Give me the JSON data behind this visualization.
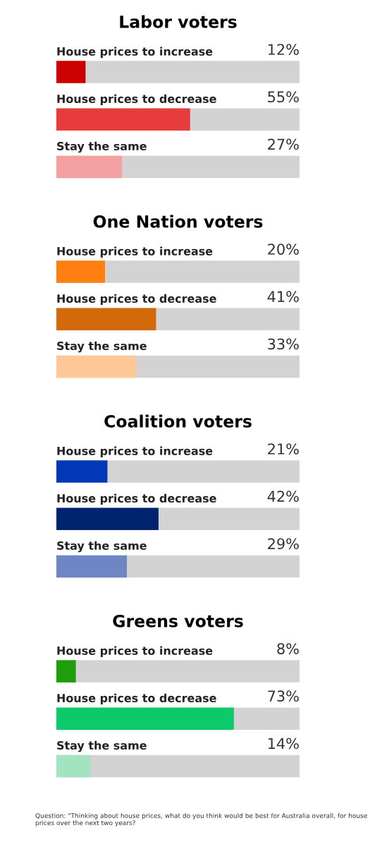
{
  "chart_data": [
    {
      "type": "bar",
      "orientation": "horizontal",
      "title": "Labor voters",
      "categories": [
        "House prices to increase",
        "House prices to decrease",
        "Stay the same"
      ],
      "tick_labels": false,
      "bands": [
        {
          "axis": "x",
          "from": 0,
          "to": 100,
          "color": "#d3d3d3"
        }
      ],
      "series": [
        {
          "colors": [
            "#cc0000",
            "#e83c3c",
            "#f4a0a0"
          ],
          "values": [
            12,
            55,
            27
          ],
          "value_labels": [
            "12%",
            "55%",
            "27%"
          ]
        }
      ]
    },
    {
      "type": "bar",
      "orientation": "horizontal",
      "title": "One Nation voters",
      "categories": [
        "House prices to increase",
        "House prices to decrease",
        "Stay the same"
      ],
      "tick_labels": false,
      "bands": [
        {
          "axis": "x",
          "from": 0,
          "to": 100,
          "color": "#d3d3d3"
        }
      ],
      "series": [
        {
          "colors": [
            "#ff8010",
            "#d2690a",
            "#ffc898"
          ],
          "values": [
            20,
            41,
            33
          ],
          "value_labels": [
            "20%",
            "41%",
            "33%"
          ]
        }
      ]
    },
    {
      "type": "bar",
      "orientation": "horizontal",
      "title": "Coalition voters",
      "categories": [
        "House prices to increase",
        "House prices to decrease",
        "Stay the same"
      ],
      "tick_labels": false,
      "bands": [
        {
          "axis": "x",
          "from": 0,
          "to": 100,
          "color": "#d3d3d3"
        }
      ],
      "series": [
        {
          "colors": [
            "#0038b8",
            "#00246e",
            "#6e87c4"
          ],
          "values": [
            21,
            42,
            29
          ],
          "value_labels": [
            "21%",
            "42%",
            "29%"
          ]
        }
      ]
    },
    {
      "type": "bar",
      "orientation": "horizontal",
      "title": "Greens voters",
      "categories": [
        "House prices to increase",
        "House prices to decrease",
        "Stay the same"
      ],
      "tick_labels": false,
      "bands": [
        {
          "axis": "x",
          "from": 0,
          "to": 100,
          "color": "#d3d3d3"
        }
      ],
      "series": [
        {
          "colors": [
            "#1e9e0a",
            "#0cc96a",
            "#a3e4c0"
          ],
          "values": [
            8,
            73,
            14
          ],
          "value_labels": [
            "8%",
            "73%",
            "14%"
          ]
        }
      ],
      "annotations": [
        "Question: \"Thinking about house prices, what do you think would be best for Australia overall, for house prices over the next two years?"
      ]
    }
  ]
}
